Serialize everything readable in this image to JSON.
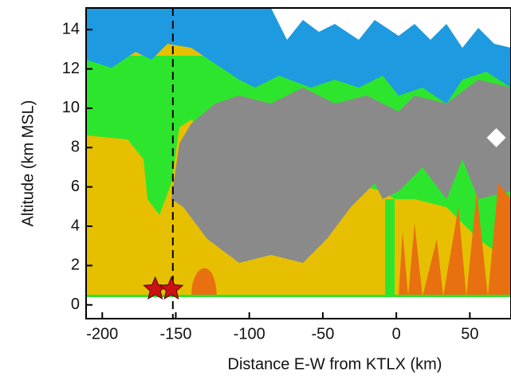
{
  "chart_data": {
    "type": "cross-section",
    "xlabel": "Distance E-W from KTLX (km)",
    "ylabel": "Altitude (km MSL)",
    "xlim": [
      -211,
      78
    ],
    "ylim": [
      -0.7,
      15.1
    ],
    "xticks": [
      -200,
      -150,
      -100,
      -50,
      0,
      50
    ],
    "yticks": [
      0,
      2,
      4,
      6,
      8,
      10,
      12,
      14
    ],
    "reference_x": -152,
    "stars": {
      "color": "#cc1111",
      "x": [
        -164,
        -153
      ],
      "y": [
        0.8,
        0.8
      ]
    },
    "diamond": {
      "color": "#ffffff",
      "x": [
        68
      ],
      "y": [
        8.5
      ]
    }
  }
}
